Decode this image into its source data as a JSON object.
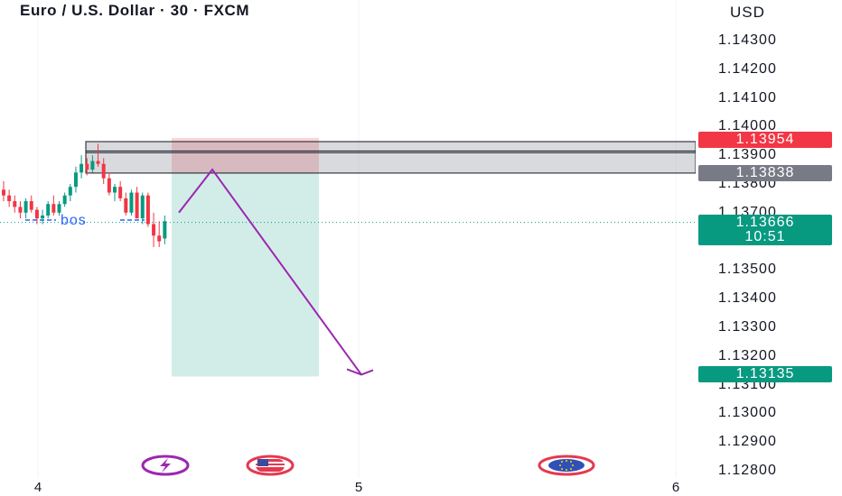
{
  "header": {
    "title": "Euro / U.S. Dollar · 30 · FXCM"
  },
  "price_axis": {
    "currency": "USD",
    "ticks": [
      "1.14300",
      "1.14200",
      "1.14100",
      "1.14000",
      "1.13900",
      "1.13800",
      "1.13700",
      "1.13600",
      "1.13500",
      "1.13400",
      "1.13300",
      "1.13200",
      "1.13100",
      "1.13000",
      "1.12900",
      "1.12800"
    ]
  },
  "price_tags": {
    "sell_entry": {
      "value": "1.13954",
      "color": "#f23645"
    },
    "zone": {
      "value": "1.13838",
      "color": "#787b86"
    },
    "current": {
      "value": "1.13666",
      "countdown": "10:51",
      "color": "#089981"
    },
    "target": {
      "value": "1.13135",
      "color": "#089981"
    }
  },
  "time_axis": {
    "labels": [
      "4",
      "5",
      "6"
    ]
  },
  "annotation": {
    "bos_label": "bos"
  },
  "events": [
    {
      "name": "lightning-event-icon"
    },
    {
      "name": "us-flag-event-icon"
    },
    {
      "name": "eu-flag-event-icon"
    }
  ],
  "chart_data": {
    "type": "candlestick",
    "title": "Euro / U.S. Dollar · 30 · FXCM",
    "y_unit": "USD",
    "ylim": [
      1.1275,
      1.1437
    ],
    "current_price": 1.13666,
    "supply_zone": {
      "top": 1.13915,
      "bottom": 1.13838,
      "upper_band_top": 1.13954
    },
    "position": {
      "side": "short",
      "stop": 1.13954,
      "entry": 1.13838,
      "target": 1.13135
    },
    "projection": [
      1.137,
      1.1385,
      1.13135
    ],
    "bos_level": 1.1369,
    "candles": [
      {
        "o": 1.1378,
        "h": 1.1381,
        "l": 1.1374,
        "c": 1.1376
      },
      {
        "o": 1.1376,
        "h": 1.1378,
        "l": 1.1372,
        "c": 1.1374
      },
      {
        "o": 1.1374,
        "h": 1.1376,
        "l": 1.137,
        "c": 1.1372
      },
      {
        "o": 1.1372,
        "h": 1.1374,
        "l": 1.1368,
        "c": 1.137
      },
      {
        "o": 1.137,
        "h": 1.1375,
        "l": 1.1368,
        "c": 1.1374
      },
      {
        "o": 1.1374,
        "h": 1.1376,
        "l": 1.137,
        "c": 1.1371
      },
      {
        "o": 1.1371,
        "h": 1.1372,
        "l": 1.1366,
        "c": 1.1368
      },
      {
        "o": 1.1368,
        "h": 1.1371,
        "l": 1.1366,
        "c": 1.1369
      },
      {
        "o": 1.1369,
        "h": 1.1374,
        "l": 1.1368,
        "c": 1.1373
      },
      {
        "o": 1.1373,
        "h": 1.1376,
        "l": 1.1369,
        "c": 1.137
      },
      {
        "o": 1.137,
        "h": 1.1374,
        "l": 1.1369,
        "c": 1.1373
      },
      {
        "o": 1.1373,
        "h": 1.1377,
        "l": 1.1372,
        "c": 1.1376
      },
      {
        "o": 1.1376,
        "h": 1.138,
        "l": 1.1374,
        "c": 1.1379
      },
      {
        "o": 1.1379,
        "h": 1.1386,
        "l": 1.1377,
        "c": 1.1384
      },
      {
        "o": 1.1384,
        "h": 1.139,
        "l": 1.1382,
        "c": 1.1387
      },
      {
        "o": 1.1387,
        "h": 1.1389,
        "l": 1.1383,
        "c": 1.1385
      },
      {
        "o": 1.1385,
        "h": 1.139,
        "l": 1.1384,
        "c": 1.1388
      },
      {
        "o": 1.1388,
        "h": 1.1394,
        "l": 1.1386,
        "c": 1.1387
      },
      {
        "o": 1.1387,
        "h": 1.1389,
        "l": 1.138,
        "c": 1.1382
      },
      {
        "o": 1.1382,
        "h": 1.1384,
        "l": 1.1376,
        "c": 1.1377
      },
      {
        "o": 1.1377,
        "h": 1.138,
        "l": 1.1374,
        "c": 1.1379
      },
      {
        "o": 1.1379,
        "h": 1.1381,
        "l": 1.1374,
        "c": 1.1375
      },
      {
        "o": 1.1375,
        "h": 1.1377,
        "l": 1.1369,
        "c": 1.137
      },
      {
        "o": 1.137,
        "h": 1.1378,
        "l": 1.1369,
        "c": 1.1377
      },
      {
        "o": 1.1377,
        "h": 1.1379,
        "l": 1.1368,
        "c": 1.1368
      },
      {
        "o": 1.1368,
        "h": 1.1377,
        "l": 1.1366,
        "c": 1.1376
      },
      {
        "o": 1.1376,
        "h": 1.1377,
        "l": 1.1365,
        "c": 1.1366
      },
      {
        "o": 1.1366,
        "h": 1.137,
        "l": 1.1358,
        "c": 1.1362
      },
      {
        "o": 1.1362,
        "h": 1.1367,
        "l": 1.1358,
        "c": 1.136
      },
      {
        "o": 1.1361,
        "h": 1.1369,
        "l": 1.1359,
        "c": 1.1367
      }
    ]
  }
}
